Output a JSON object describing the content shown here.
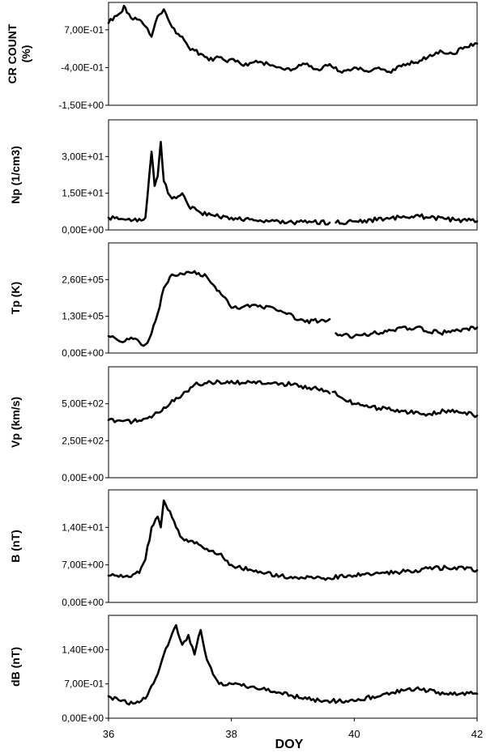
{
  "chart_data": {
    "type": "line",
    "xlabel": "DOY",
    "xlim": [
      36,
      42
    ],
    "x_ticks": [
      36,
      38,
      40,
      42
    ],
    "x_tick_labels": [
      "36",
      "38",
      "40",
      "42"
    ],
    "grid": false,
    "panels": [
      {
        "id": "cr",
        "ylabel_lines": [
          "CR COUNT",
          "(%)"
        ],
        "ylim": [
          -1.5,
          1.5
        ],
        "y_ticks": [
          -1.5,
          -0.4,
          0.7
        ],
        "y_tick_labels": [
          "-1,50E+00",
          "-4,00E-01",
          "7,00E-01"
        ],
        "series": [
          {
            "x": [
              36.0,
              36.1,
              36.2,
              36.25,
              36.3,
              36.4,
              36.5,
              36.6,
              36.7,
              36.8,
              36.9,
              37.0,
              37.1,
              37.2,
              37.3,
              37.4,
              37.5,
              37.6,
              37.7,
              37.8,
              37.9,
              38.0,
              38.2,
              38.4,
              38.6,
              38.8,
              39.0,
              39.2,
              39.4,
              39.6,
              39.8,
              40.0,
              40.2,
              40.4,
              40.6,
              40.8,
              41.0,
              41.2,
              41.4,
              41.6,
              41.8,
              42.0
            ],
            "y": [
              0.9,
              1.1,
              1.2,
              1.4,
              1.2,
              1.0,
              1.0,
              0.8,
              0.5,
              1.1,
              1.3,
              0.9,
              0.6,
              0.5,
              0.2,
              0.1,
              0.0,
              -0.1,
              -0.2,
              -0.1,
              -0.2,
              -0.15,
              -0.35,
              -0.2,
              -0.3,
              -0.4,
              -0.45,
              -0.3,
              -0.45,
              -0.3,
              -0.55,
              -0.4,
              -0.5,
              -0.4,
              -0.55,
              -0.3,
              -0.25,
              -0.1,
              0.1,
              0.0,
              0.2,
              0.3
            ]
          }
        ]
      },
      {
        "id": "np",
        "ylabel_lines": [
          "Np  (1/cm3)"
        ],
        "ylim": [
          0,
          45
        ],
        "y_ticks": [
          0,
          15,
          30
        ],
        "y_tick_labels": [
          "0,00E+00",
          "1,50E+01",
          "3,00E+01"
        ],
        "series": [
          {
            "x": [
              36.0,
              36.2,
              36.4,
              36.5,
              36.6,
              36.7,
              36.75,
              36.8,
              36.85,
              36.9,
              37.0,
              37.1,
              37.2,
              37.3,
              37.5,
              37.7,
              38.0,
              38.5,
              39.0,
              39.3,
              39.6
            ],
            "y": [
              5.0,
              4.5,
              4.0,
              4.5,
              5.0,
              32.0,
              18.0,
              22.0,
              36.0,
              20.0,
              14.0,
              13.0,
              15.0,
              10.0,
              7.0,
              6.0,
              5.0,
              3.5,
              3.0,
              3.2,
              3.0
            ]
          },
          {
            "x": [
              39.7,
              40.0,
              40.5,
              41.0,
              41.2,
              41.5,
              42.0
            ],
            "y": [
              3.0,
              3.5,
              4.5,
              6.0,
              5.0,
              4.5,
              3.5
            ]
          }
        ]
      },
      {
        "id": "tp",
        "ylabel_lines": [
          "Tp  (K)"
        ],
        "ylim": [
          0,
          390000
        ],
        "y_ticks": [
          0,
          130000,
          260000
        ],
        "y_tick_labels": [
          "0,00E+00",
          "1,30E+05",
          "2,60E+05"
        ],
        "series": [
          {
            "x": [
              36.0,
              36.2,
              36.4,
              36.5,
              36.6,
              36.7,
              36.8,
              36.9,
              37.0,
              37.2,
              37.4,
              37.6,
              37.8,
              38.0,
              38.4,
              38.8,
              39.2,
              39.6
            ],
            "y": [
              60000,
              40000,
              50000,
              40000,
              30000,
              70000,
              140000,
              230000,
              270000,
              280000,
              290000,
              270000,
              220000,
              160000,
              170000,
              150000,
              110000,
              120000
            ]
          },
          {
            "x": [
              39.7,
              40.0,
              40.3,
              40.6,
              41.0,
              41.4,
              41.7,
              42.0
            ],
            "y": [
              70000,
              60000,
              70000,
              80000,
              90000,
              70000,
              80000,
              90000
            ]
          }
        ]
      },
      {
        "id": "vp",
        "ylabel_lines": [
          "Vp  (km/s)"
        ],
        "ylim": [
          0,
          750
        ],
        "y_ticks": [
          0,
          250,
          500
        ],
        "y_tick_labels": [
          "0,00E+00",
          "2,50E+02",
          "5,00E+02"
        ],
        "series": [
          {
            "x": [
              36.0,
              36.2,
              36.4,
              36.6,
              36.8,
              37.0,
              37.2,
              37.4,
              37.8,
              38.2,
              38.6,
              39.0,
              39.4,
              39.6
            ],
            "y": [
              390,
              385,
              380,
              400,
              440,
              500,
              560,
              630,
              650,
              640,
              640,
              630,
              600,
              570
            ]
          },
          {
            "x": [
              39.65,
              39.8,
              40.0,
              40.4,
              40.8,
              41.2,
              41.6,
              42.0
            ],
            "y": [
              580,
              540,
              500,
              470,
              450,
              430,
              460,
              420
            ]
          }
        ]
      },
      {
        "id": "b",
        "ylabel_lines": [
          "B  (nT)"
        ],
        "ylim": [
          0,
          21
        ],
        "y_ticks": [
          0,
          7,
          14
        ],
        "y_tick_labels": [
          "0,00E+00",
          "7,00E+00",
          "1,40E+01"
        ],
        "series": [
          {
            "x": [
              36.0,
              36.3,
              36.5,
              36.6,
              36.7,
              36.8,
              36.85,
              36.9,
              37.0,
              37.1,
              37.2,
              37.4,
              37.6,
              37.8,
              38.0,
              38.5,
              39.0,
              39.5,
              40.0,
              40.5,
              41.0,
              41.5,
              42.0
            ],
            "y": [
              5.0,
              5.0,
              5.5,
              8.0,
              14.0,
              16.0,
              14.0,
              19.0,
              17.0,
              14.0,
              12.0,
              11.0,
              10.0,
              9.0,
              7.0,
              5.5,
              4.5,
              4.5,
              5.0,
              5.5,
              6.0,
              6.5,
              6.0
            ]
          }
        ]
      },
      {
        "id": "db",
        "ylabel_lines": [
          "dB  (nT)"
        ],
        "ylim": [
          0,
          2.1
        ],
        "y_ticks": [
          0,
          0.7,
          1.4
        ],
        "y_tick_labels": [
          "0,00E+00",
          "7,00E-01",
          "1,40E+00"
        ],
        "series": [
          {
            "x": [
              36.0,
              36.2,
              36.4,
              36.6,
              36.8,
              36.9,
              37.0,
              37.1,
              37.2,
              37.3,
              37.4,
              37.5,
              37.6,
              37.7,
              37.8,
              38.0,
              38.5,
              39.0,
              39.5,
              40.0,
              40.5,
              41.0,
              41.5,
              42.0
            ],
            "y": [
              0.45,
              0.35,
              0.3,
              0.4,
              0.9,
              1.3,
              1.6,
              1.9,
              1.5,
              1.7,
              1.3,
              1.8,
              1.2,
              0.9,
              0.7,
              0.7,
              0.6,
              0.45,
              0.35,
              0.35,
              0.5,
              0.6,
              0.5,
              0.5
            ]
          }
        ]
      }
    ]
  }
}
